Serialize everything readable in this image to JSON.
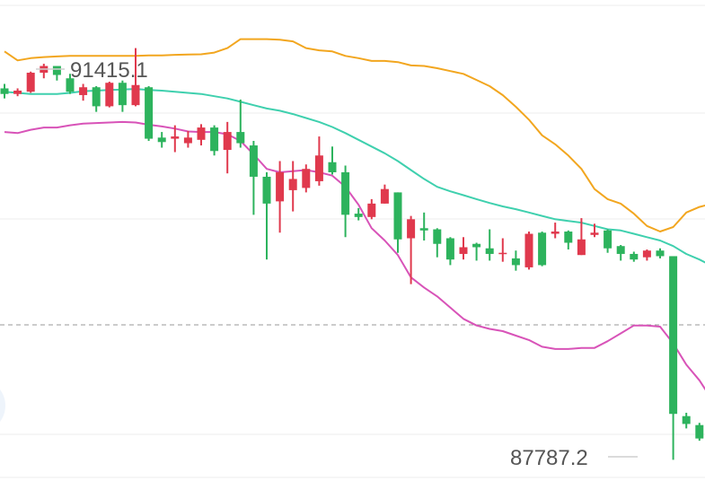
{
  "chart_data": {
    "type": "candlestick",
    "price_range": [
      87600,
      91900
    ],
    "labels": {
      "high": "91415.1",
      "low": "87787.2"
    },
    "colors": {
      "up": "#e0394d",
      "down": "#2db35d",
      "upper_band": "#f2a61f",
      "middle_band": "#3fd0ae",
      "lower_band": "#d853b8",
      "grid": "#eeeeee",
      "dashed_line": "#9a9a9a",
      "price_tick": "#cfcfcf"
    },
    "candles": [
      [
        91110,
        91150,
        91020,
        91060
      ],
      [
        91060,
        91110,
        91040,
        91090
      ],
      [
        91080,
        91260,
        91070,
        91250
      ],
      [
        91250,
        91330,
        91200,
        91310
      ],
      [
        91310,
        91300,
        91180,
        91230
      ],
      [
        91200,
        91240,
        91060,
        91080
      ],
      [
        91050,
        91150,
        91000,
        91120
      ],
      [
        91120,
        91130,
        90900,
        90950
      ],
      [
        90950,
        91170,
        90940,
        91160
      ],
      [
        91160,
        91180,
        90900,
        90960
      ],
      [
        90960,
        91470,
        90950,
        91140
      ],
      [
        91120,
        91130,
        90640,
        90660
      ],
      [
        90670,
        90720,
        90580,
        90630
      ],
      [
        90660,
        90780,
        90540,
        90680
      ],
      [
        90620,
        90730,
        90580,
        90670
      ],
      [
        90650,
        90790,
        90600,
        90760
      ],
      [
        90760,
        90780,
        90510,
        90550
      ],
      [
        90560,
        90810,
        90350,
        90720
      ],
      [
        90720,
        91010,
        90580,
        90620
      ],
      [
        90600,
        90640,
        89980,
        90320
      ],
      [
        90320,
        90360,
        89580,
        90080
      ],
      [
        90100,
        90460,
        89820,
        90360
      ],
      [
        90200,
        90460,
        90010,
        90300
      ],
      [
        90220,
        90430,
        90180,
        90390
      ],
      [
        90280,
        90680,
        90240,
        90510
      ],
      [
        90450,
        90590,
        90340,
        90360
      ],
      [
        90360,
        90420,
        89780,
        89980
      ],
      [
        89990,
        90040,
        89930,
        89960
      ],
      [
        89960,
        90120,
        89940,
        90080
      ],
      [
        90080,
        90250,
        90080,
        90210
      ],
      [
        90180,
        90180,
        89640,
        89760
      ],
      [
        89770,
        89970,
        89360,
        89940
      ],
      [
        89860,
        90000,
        89750,
        89840
      ],
      [
        89850,
        89860,
        89600,
        89720
      ],
      [
        89770,
        89780,
        89530,
        89580
      ],
      [
        89630,
        89780,
        89580,
        89690
      ],
      [
        89720,
        89730,
        89570,
        89690
      ],
      [
        89680,
        89850,
        89570,
        89630
      ],
      [
        89630,
        89770,
        89560,
        89640
      ],
      [
        89590,
        89660,
        89480,
        89530
      ],
      [
        89510,
        89830,
        89490,
        89810
      ],
      [
        89820,
        89830,
        89520,
        89530
      ],
      [
        89810,
        89910,
        89770,
        89830
      ],
      [
        89830,
        89840,
        89670,
        89730
      ],
      [
        89620,
        89950,
        89620,
        89760
      ],
      [
        89800,
        89900,
        89780,
        89820
      ],
      [
        89840,
        89850,
        89640,
        89680
      ],
      [
        89700,
        89710,
        89570,
        89630
      ],
      [
        89630,
        89650,
        89560,
        89580
      ],
      [
        89600,
        89670,
        89570,
        89660
      ],
      [
        89660,
        89680,
        89590,
        89610
      ],
      [
        89610,
        89610,
        87790,
        88200
      ],
      [
        88180,
        88210,
        88070,
        88110
      ],
      [
        88100,
        88120,
        87960,
        87980
      ],
      [
        87960,
        88010,
        87850,
        88020
      ],
      [
        88030,
        88150,
        87960,
        88110
      ]
    ],
    "upper_band": [
      91440,
      91360,
      91380,
      91390,
      91395,
      91400,
      91400,
      91400,
      91400,
      91400,
      91400,
      91405,
      91405,
      91410,
      91412,
      91415,
      91430,
      91470,
      91550,
      91550,
      91550,
      91545,
      91530,
      91470,
      91450,
      91440,
      91400,
      91380,
      91355,
      91355,
      91345,
      91315,
      91310,
      91290,
      91265,
      91240,
      91185,
      91130,
      91050,
      90945,
      90830,
      90690,
      90610,
      90510,
      90390,
      90210,
      90120,
      90080,
      89990,
      89880,
      89830,
      89870,
      90000,
      90050,
      90080,
      90085
    ],
    "middle_band": [
      91080,
      91070,
      91060,
      91060,
      91060,
      91070,
      91085,
      91090,
      91095,
      91100,
      91105,
      91095,
      91090,
      91080,
      91070,
      91060,
      91040,
      91020,
      90990,
      90960,
      90930,
      90910,
      90880,
      90845,
      90810,
      90765,
      90710,
      90650,
      90590,
      90530,
      90460,
      90380,
      90300,
      90230,
      90190,
      90155,
      90120,
      90085,
      90055,
      90030,
      90000,
      89970,
      89940,
      89925,
      89910,
      89880,
      89850,
      89840,
      89810,
      89780,
      89750,
      89700,
      89630,
      89580,
      89520,
      89480
    ],
    "lower_band": [
      90720,
      90710,
      90740,
      90760,
      90760,
      90780,
      90795,
      90800,
      90805,
      90810,
      90805,
      90785,
      90770,
      90750,
      90725,
      90720,
      90720,
      90700,
      90640,
      90520,
      90390,
      90360,
      90370,
      90380,
      90360,
      90330,
      90230,
      90070,
      89860,
      89750,
      89620,
      89420,
      89330,
      89250,
      89150,
      89050,
      88990,
      88960,
      88940,
      88900,
      88860,
      88800,
      88780,
      88780,
      88790,
      88790,
      88850,
      88920,
      88990,
      88990,
      88980,
      88830,
      88640,
      88500,
      88320,
      88190
    ]
  }
}
